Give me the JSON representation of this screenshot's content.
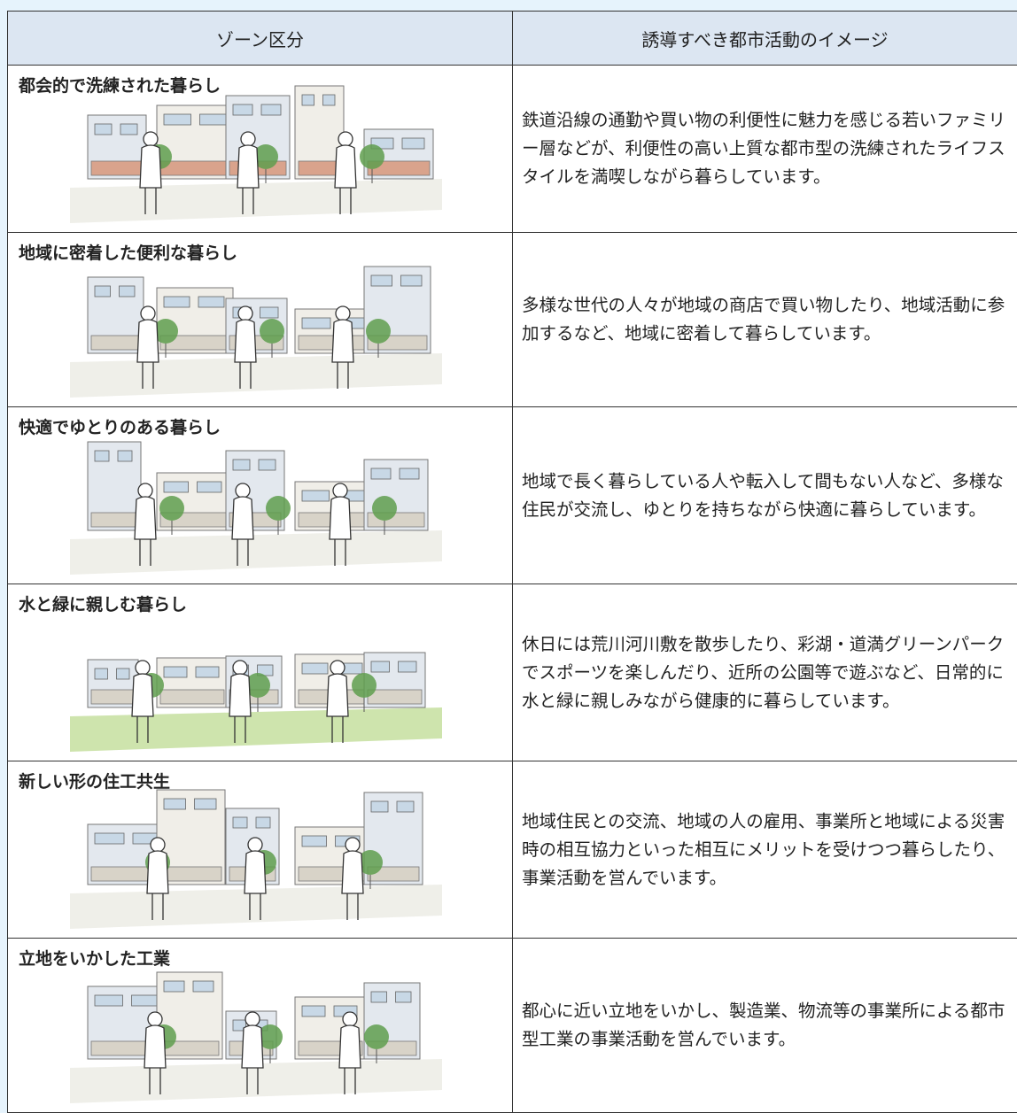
{
  "table": {
    "header": [
      "ゾーン区分",
      "誘導すべき都市活動のイメージ"
    ],
    "rows": [
      {
        "zone": "都会的で洗練された暮らし",
        "description": "鉄道沿線の通勤や買い物の利便性に魅力を感じる若いファミリー層などが、利便性の高い上質な都市型の洗練されたライフスタイルを満喫しながら暮らしています。"
      },
      {
        "zone": "地域に密着した便利な暮らし",
        "description": "多様な世代の人々が地域の商店で買い物したり、地域活動に参加するなど、地域に密着して暮らしています。"
      },
      {
        "zone": "快適でゆとりのある暮らし",
        "description": "地域で長く暮らしている人や転入して間もない人など、多様な住民が交流し、ゆとりを持ちながら快適に暮らしています。"
      },
      {
        "zone": "水と緑に親しむ暮らし",
        "description": "休日には荒川河川敷を散歩したり、彩湖・道満グリーンパークでスポーツを楽しんだり、近所の公園等で遊ぶなど、日常的に水と緑に親しみながら健康的に暮らしています。"
      },
      {
        "zone": "新しい形の住工共生",
        "description": "地域住民との交流、地域の人の雇用、事業所と地域による災害時の相互協力といった相互にメリットを受けつつ暮らしたり、事業活動を営んでいます。"
      },
      {
        "zone": "立地をいかした工業",
        "description": "都心に近い立地をいかし、製造業、物流等の事業所による都市型工業の事業活動を営んでいます。"
      }
    ]
  }
}
